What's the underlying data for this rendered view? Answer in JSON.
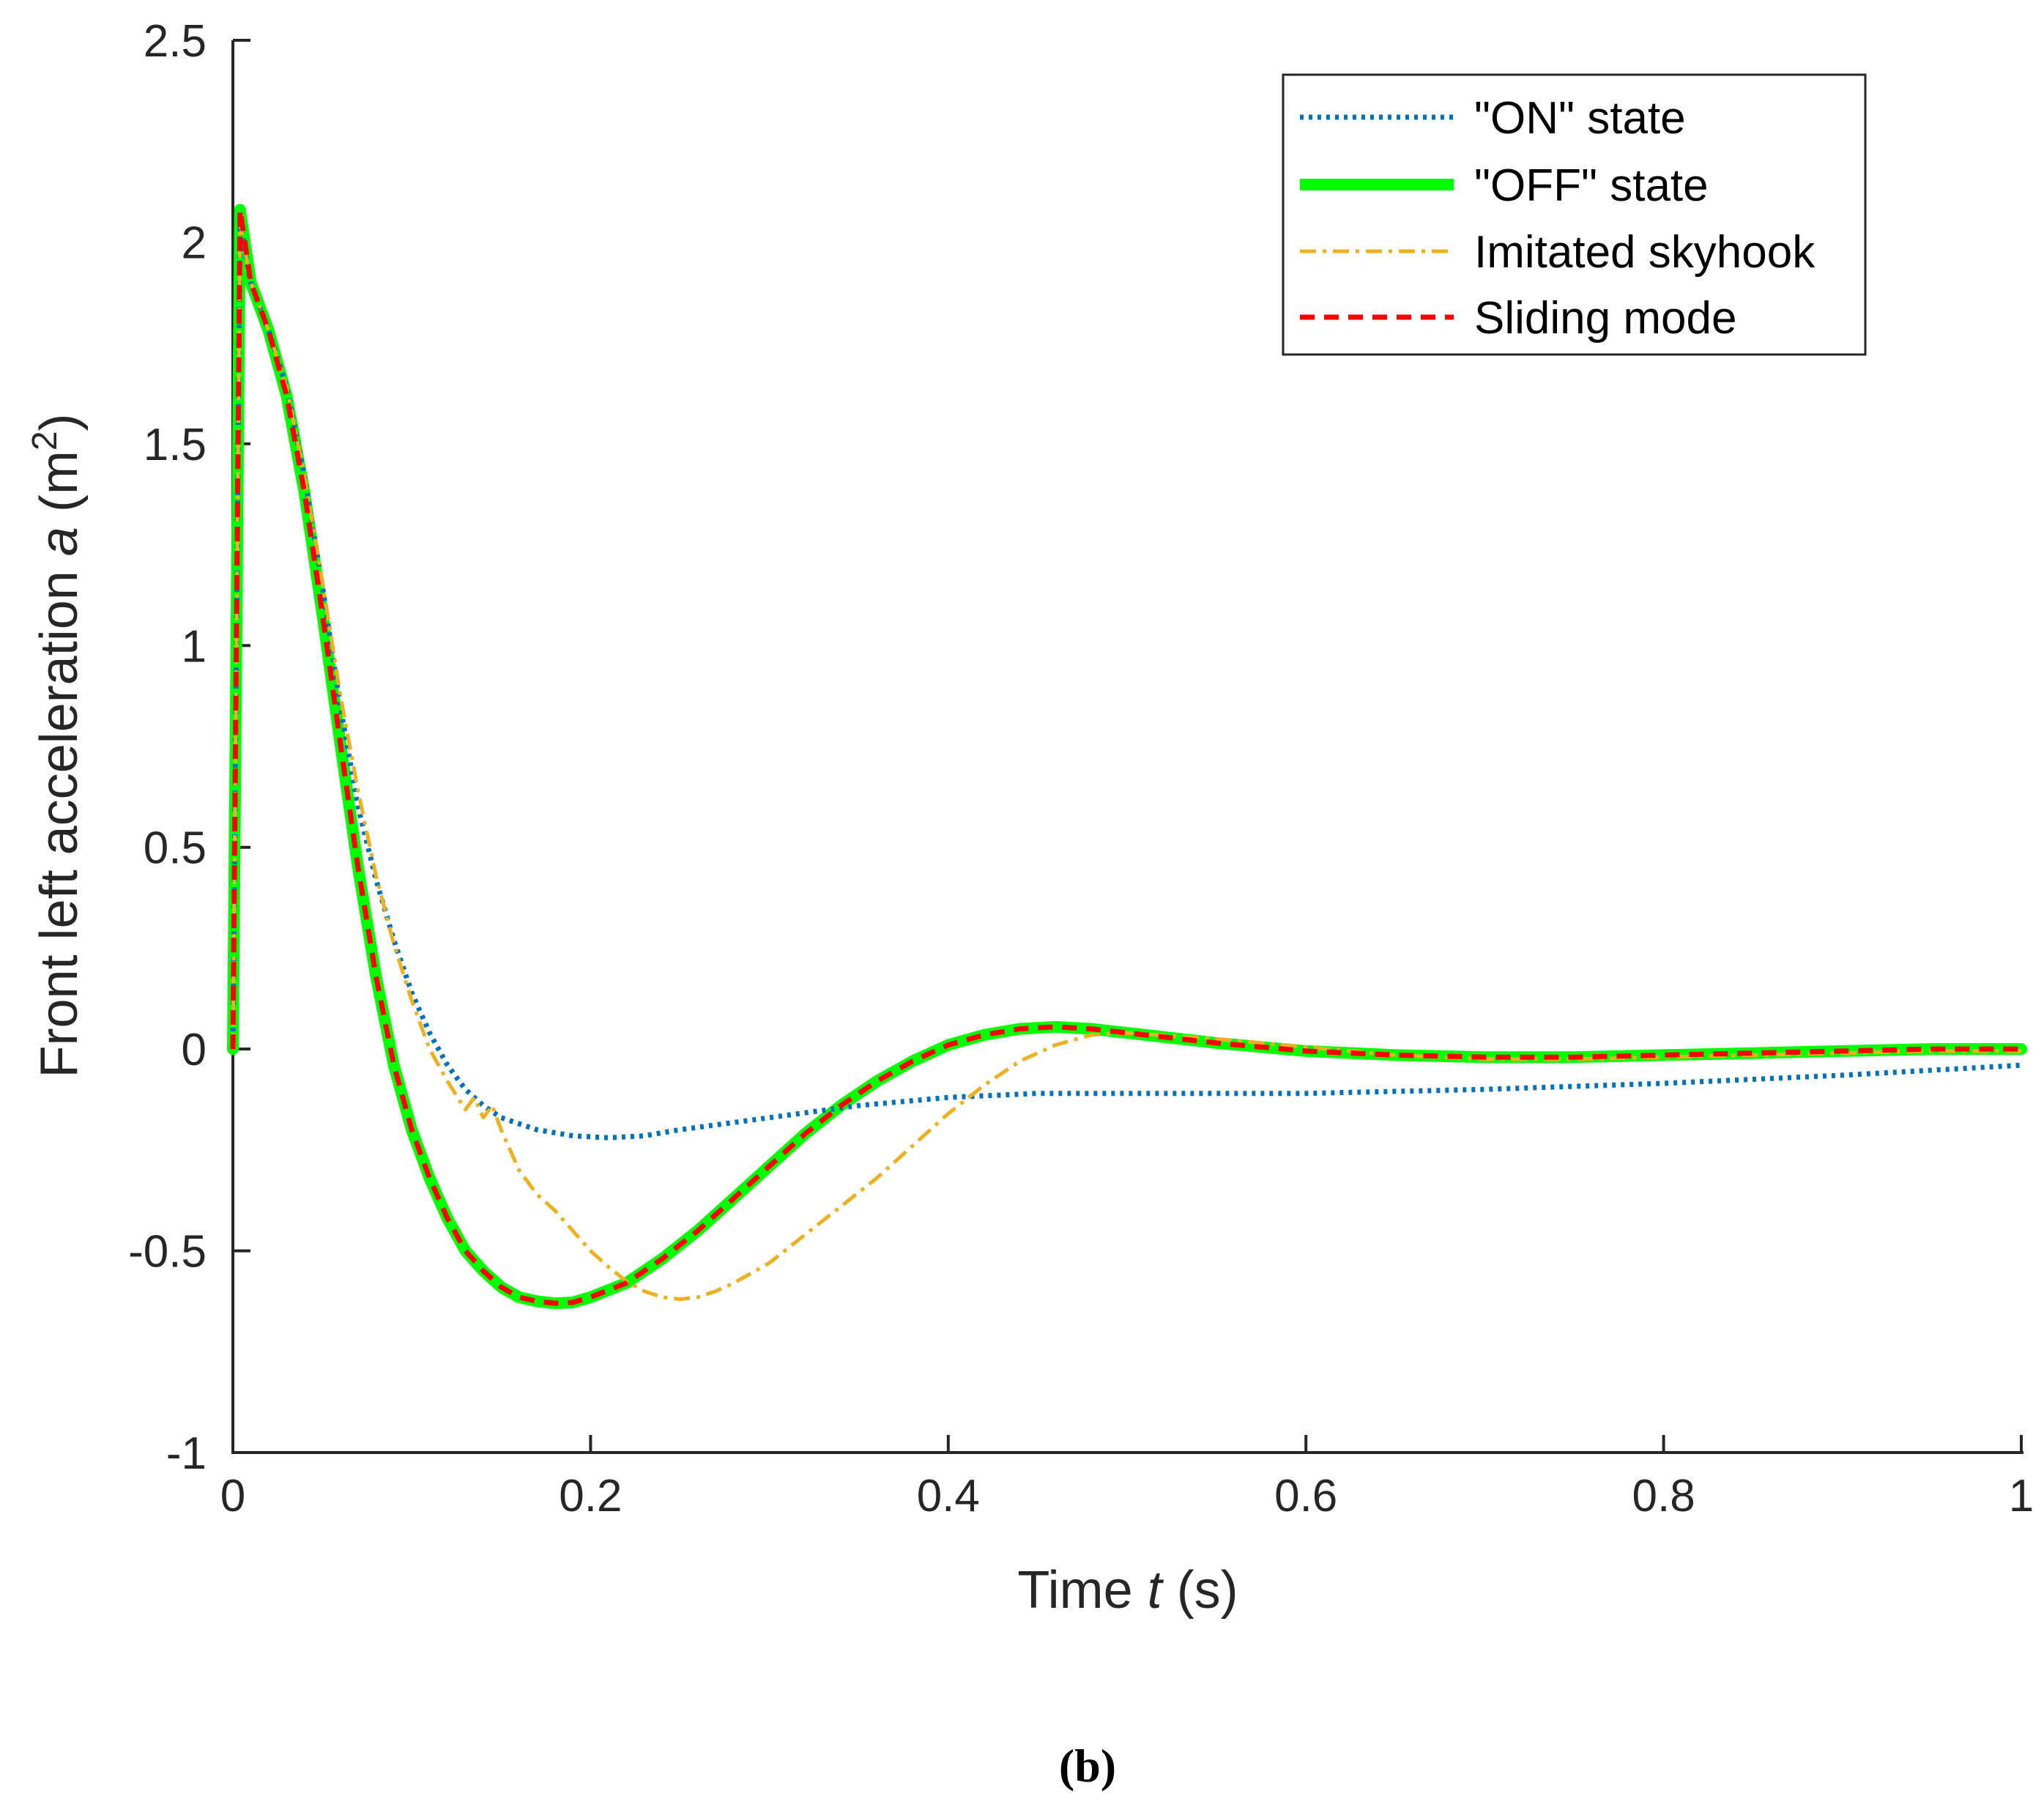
{
  "chart_data": {
    "type": "line",
    "title": "",
    "xlabel_prefix": "Time ",
    "xlabel_var": "t",
    "xlabel_suffix": " (s)",
    "ylabel_prefix": "Front left acceleration ",
    "ylabel_var": "a",
    "ylabel_unit": " (m",
    "ylabel_exp": "2",
    "ylabel_close": ")",
    "xlim": [
      0,
      1
    ],
    "ylim": [
      -1,
      2.5
    ],
    "xticks": [
      0,
      0.2,
      0.4,
      0.6,
      0.8,
      1
    ],
    "xtick_labels": [
      "0",
      "0.2",
      "0.4",
      "0.6",
      "0.8",
      "1"
    ],
    "yticks": [
      -1,
      -0.5,
      0,
      0.5,
      1,
      1.5,
      2,
      2.5
    ],
    "ytick_labels": [
      "-1",
      "-0.5",
      "0",
      "0.5",
      "1",
      "1.5",
      "2",
      "2.5"
    ],
    "grid": false,
    "legend_position": "top-right",
    "panel_label": "(b)",
    "series": [
      {
        "name": "\"ON\" state",
        "style": "dotted",
        "color": "#0072BD",
        "x": [
          0,
          0.004,
          0.01,
          0.02,
          0.03,
          0.04,
          0.05,
          0.06,
          0.07,
          0.08,
          0.09,
          0.1,
          0.11,
          0.12,
          0.13,
          0.14,
          0.15,
          0.17,
          0.19,
          0.21,
          0.23,
          0.25,
          0.3,
          0.35,
          0.4,
          0.45,
          0.5,
          0.6,
          0.7,
          0.8,
          0.9,
          1.0
        ],
        "y": [
          0,
          2.05,
          1.9,
          1.78,
          1.64,
          1.42,
          1.15,
          0.85,
          0.6,
          0.42,
          0.27,
          0.14,
          0.04,
          -0.04,
          -0.1,
          -0.14,
          -0.17,
          -0.2,
          -0.215,
          -0.22,
          -0.215,
          -0.2,
          -0.17,
          -0.14,
          -0.12,
          -0.11,
          -0.11,
          -0.11,
          -0.1,
          -0.085,
          -0.065,
          -0.04
        ]
      },
      {
        "name": "\"OFF\" state",
        "style": "solid-thick",
        "color": "#00FF00",
        "x": [
          0,
          0.004,
          0.01,
          0.02,
          0.03,
          0.04,
          0.05,
          0.06,
          0.07,
          0.08,
          0.09,
          0.1,
          0.11,
          0.12,
          0.13,
          0.14,
          0.15,
          0.16,
          0.17,
          0.18,
          0.19,
          0.2,
          0.22,
          0.24,
          0.26,
          0.28,
          0.3,
          0.32,
          0.34,
          0.36,
          0.38,
          0.4,
          0.42,
          0.44,
          0.46,
          0.48,
          0.5,
          0.55,
          0.6,
          0.65,
          0.7,
          0.75,
          0.8,
          0.85,
          0.9,
          0.95,
          1.0
        ],
        "y": [
          0,
          2.08,
          1.9,
          1.78,
          1.62,
          1.38,
          1.08,
          0.76,
          0.45,
          0.18,
          -0.04,
          -0.2,
          -0.32,
          -0.42,
          -0.5,
          -0.55,
          -0.59,
          -0.615,
          -0.625,
          -0.63,
          -0.628,
          -0.615,
          -0.58,
          -0.52,
          -0.45,
          -0.37,
          -0.29,
          -0.21,
          -0.14,
          -0.08,
          -0.03,
          0.01,
          0.035,
          0.05,
          0.055,
          0.05,
          0.04,
          0.015,
          -0.005,
          -0.015,
          -0.02,
          -0.02,
          -0.015,
          -0.01,
          -0.005,
          0,
          0
        ]
      },
      {
        "name": "Imitated skyhook",
        "style": "dashdot",
        "color": "#EDB120",
        "x": [
          0,
          0.004,
          0.01,
          0.02,
          0.03,
          0.04,
          0.05,
          0.06,
          0.07,
          0.08,
          0.09,
          0.1,
          0.11,
          0.12,
          0.13,
          0.135,
          0.14,
          0.145,
          0.15,
          0.16,
          0.17,
          0.18,
          0.19,
          0.2,
          0.21,
          0.22,
          0.23,
          0.24,
          0.25,
          0.26,
          0.27,
          0.28,
          0.3,
          0.32,
          0.34,
          0.36,
          0.38,
          0.4,
          0.42,
          0.44,
          0.46,
          0.48,
          0.5,
          0.55,
          0.6,
          0.65,
          0.7,
          0.75,
          0.8,
          0.85,
          0.9,
          0.95,
          1.0
        ],
        "y": [
          0,
          2.05,
          1.9,
          1.78,
          1.64,
          1.42,
          1.16,
          0.88,
          0.64,
          0.43,
          0.26,
          0.12,
          0.0,
          -0.08,
          -0.15,
          -0.12,
          -0.17,
          -0.14,
          -0.2,
          -0.3,
          -0.36,
          -0.4,
          -0.45,
          -0.5,
          -0.54,
          -0.575,
          -0.6,
          -0.615,
          -0.62,
          -0.615,
          -0.6,
          -0.58,
          -0.53,
          -0.46,
          -0.39,
          -0.32,
          -0.24,
          -0.16,
          -0.09,
          -0.03,
          0.01,
          0.035,
          0.04,
          0.025,
          0.005,
          -0.015,
          -0.025,
          -0.025,
          -0.02,
          -0.015,
          -0.01,
          -0.005,
          -0.005
        ]
      },
      {
        "name": "Sliding mode",
        "style": "dashed",
        "color": "#FF0000",
        "x": [
          0,
          0.004,
          0.01,
          0.02,
          0.03,
          0.04,
          0.05,
          0.06,
          0.07,
          0.08,
          0.09,
          0.1,
          0.11,
          0.12,
          0.13,
          0.14,
          0.15,
          0.16,
          0.17,
          0.18,
          0.19,
          0.2,
          0.22,
          0.24,
          0.26,
          0.28,
          0.3,
          0.32,
          0.34,
          0.36,
          0.38,
          0.4,
          0.42,
          0.44,
          0.46,
          0.48,
          0.5,
          0.55,
          0.6,
          0.65,
          0.7,
          0.75,
          0.8,
          0.85,
          0.9,
          0.95,
          1.0
        ],
        "y": [
          0,
          2.08,
          1.9,
          1.78,
          1.62,
          1.38,
          1.08,
          0.76,
          0.45,
          0.18,
          -0.04,
          -0.2,
          -0.32,
          -0.42,
          -0.5,
          -0.55,
          -0.59,
          -0.615,
          -0.625,
          -0.63,
          -0.628,
          -0.615,
          -0.58,
          -0.52,
          -0.45,
          -0.37,
          -0.29,
          -0.21,
          -0.14,
          -0.08,
          -0.03,
          0.01,
          0.035,
          0.05,
          0.055,
          0.05,
          0.04,
          0.015,
          -0.005,
          -0.015,
          -0.02,
          -0.02,
          -0.015,
          -0.01,
          -0.005,
          0,
          0
        ]
      }
    ]
  }
}
